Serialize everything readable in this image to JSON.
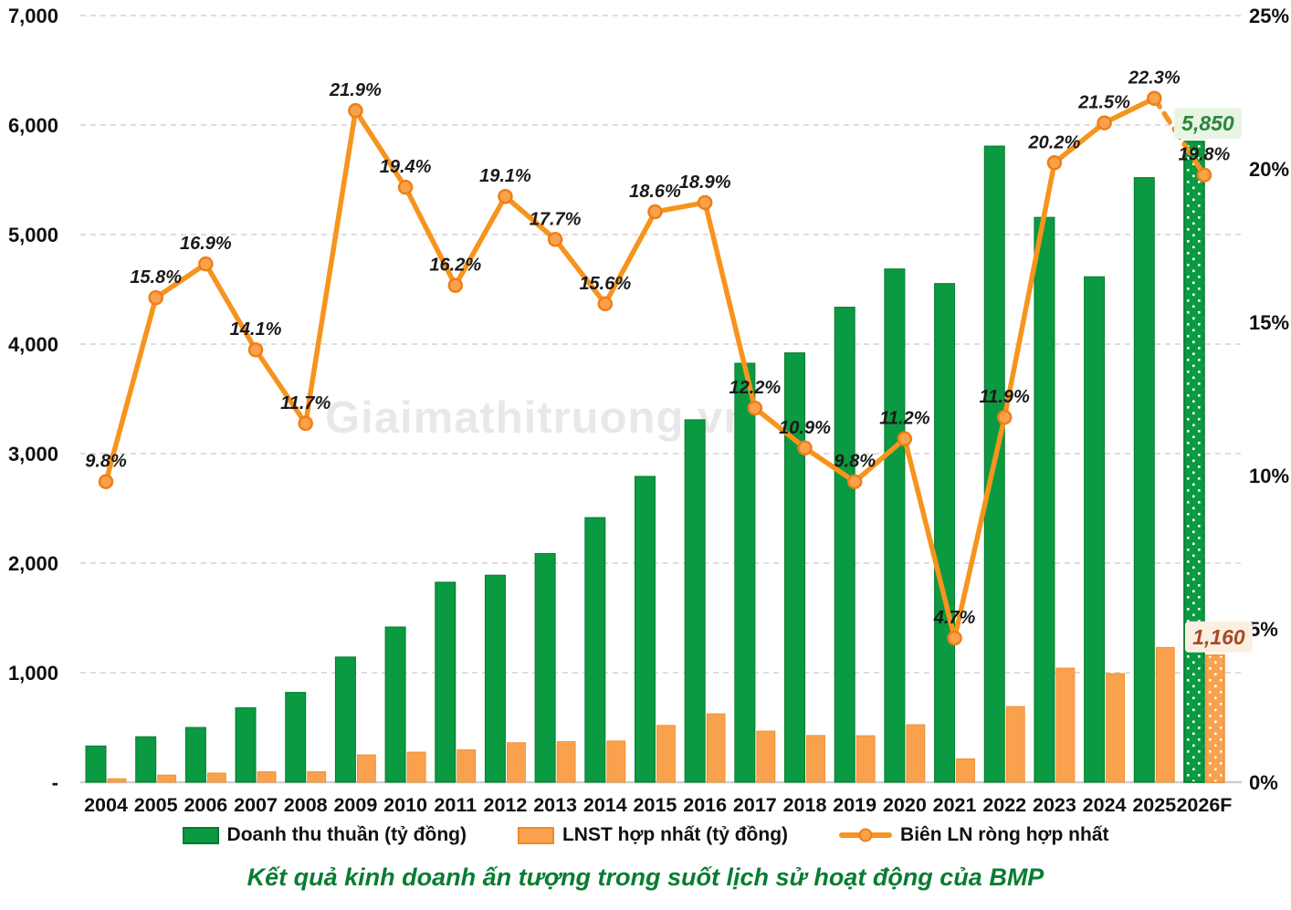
{
  "watermark": "Giaimathitruong.vn",
  "title": "Kết quả kinh doanh ấn tượng trong suốt lịch sử hoạt động của BMP",
  "legend": [
    {
      "label": "Doanh thu thuần (tỷ đồng)",
      "color": "#0A9A41",
      "border": "#077A2E"
    },
    {
      "label": "LNST hợp nhất (tỷ đồng)",
      "color": "#F9A14D",
      "border": "#EE8B25"
    },
    {
      "label": "Biên LN ròng hợp nhất",
      "color": "#F7941D",
      "marker_fill": "#F9A24B",
      "marker_border": "#EE7E1A"
    }
  ],
  "axes": {
    "left_ticks": [
      "7,000",
      "6,000",
      "5,000",
      "4,000",
      "3,000",
      "2,000",
      "1,000",
      "-"
    ],
    "right_ticks": [
      "25%",
      "20%",
      "15%",
      "10%",
      "5%",
      "0%"
    ],
    "left_max": 7000,
    "right_max": 25
  },
  "chart_data": {
    "type": "combo",
    "categories": [
      "2004",
      "2005",
      "2006",
      "2007",
      "2008",
      "2009",
      "2010",
      "2011",
      "2012",
      "2013",
      "2014",
      "2015",
      "2016",
      "2017",
      "2018",
      "2019",
      "2020",
      "2021",
      "2022",
      "2023",
      "2024",
      "2025",
      "2026F"
    ],
    "series": [
      {
        "name": "Doanh thu thuần (tỷ đồng)",
        "type": "bar",
        "axis": "left",
        "color": "#0A9A41",
        "border": "#077A2E",
        "values": [
          331,
          415,
          500,
          680,
          820,
          1143,
          1417,
          1826,
          1890,
          2088,
          2416,
          2792,
          3309,
          3825,
          3920,
          4337,
          4686,
          4553,
          5808,
          5157,
          4615,
          5520,
          5850
        ],
        "last_is_forecast": true
      },
      {
        "name": "LNST hợp nhất (tỷ đồng)",
        "type": "bar",
        "axis": "left",
        "color": "#F9A14D",
        "border": "#EE8B25",
        "values": [
          32,
          66,
          84,
          96,
          96,
          250,
          275,
          296,
          361,
          370,
          377,
          519,
          625,
          467,
          427,
          425,
          525,
          214,
          691,
          1042,
          992,
          1231,
          1160
        ],
        "last_is_forecast": true
      },
      {
        "name": "Biên LN ròng hợp nhất",
        "type": "line",
        "axis": "right",
        "color": "#F7941D",
        "values": [
          9.8,
          15.8,
          16.9,
          14.1,
          11.7,
          21.9,
          19.4,
          16.2,
          19.1,
          17.7,
          15.6,
          18.6,
          18.9,
          12.2,
          10.9,
          9.8,
          11.2,
          4.7,
          11.9,
          20.2,
          21.5,
          22.3,
          19.8
        ],
        "last_segment_dashed": true
      }
    ],
    "annotations": [
      {
        "text": "5,850",
        "series": 0,
        "index": 22,
        "box_fill": "#E8F5E3",
        "text_color": "#2E8540"
      },
      {
        "text": "1,160",
        "series": 1,
        "index": 22,
        "box_fill": "#FBEFE2",
        "text_color": "#A74A26"
      }
    ],
    "ylim_left": [
      0,
      7000
    ],
    "ylim_right": [
      0,
      25
    ],
    "grid": "horizontal-dashed",
    "legend_position": "bottom"
  }
}
